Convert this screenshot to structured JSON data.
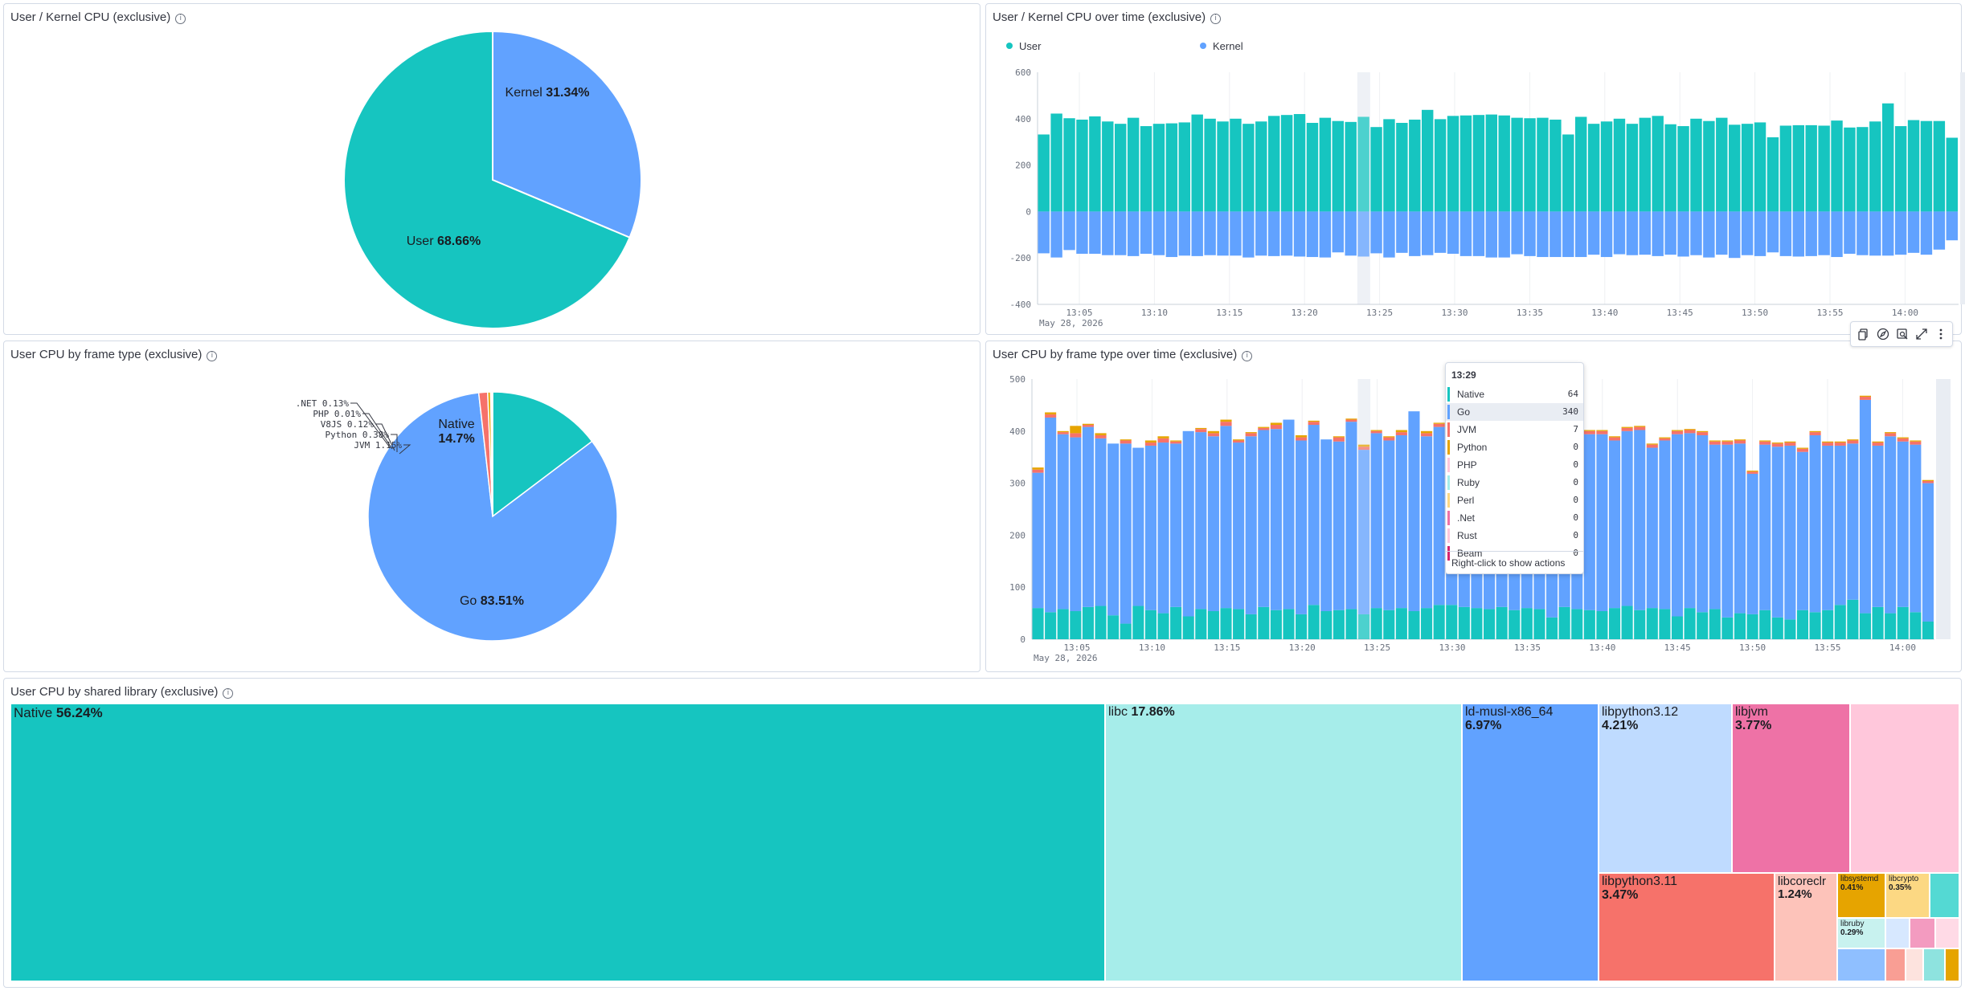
{
  "panels": {
    "pie1": {
      "title": "User / Kernel CPU (exclusive)"
    },
    "bar1": {
      "title": "User / Kernel CPU over time (exclusive)"
    },
    "pie2": {
      "title": "User CPU by frame type (exclusive)"
    },
    "bar2": {
      "title": "User CPU by frame type over time (exclusive)"
    },
    "treemap": {
      "title": "User CPU by shared library (exclusive)"
    }
  },
  "colors": {
    "teal": "#16c5c0",
    "blue": "#61a2ff",
    "orange": "#f6726a",
    "red": "#ee5a3c",
    "lightteal": "#a6edea",
    "paleblue": "#bfdbff",
    "pink": "#ee72a6",
    "palepink": "#ffc7db",
    "salmon": "#f6726a",
    "peach": "#fdc3ba",
    "gold": "#e6a400",
    "paleyellow": "#fcd883"
  },
  "chart_data": [
    {
      "type": "pie",
      "title": "User / Kernel CPU (exclusive)",
      "slices": [
        {
          "label": "Kernel",
          "pct_text": "31.34%",
          "value": 31.34,
          "color": "#61a2ff"
        },
        {
          "label": "User",
          "pct_text": "68.66%",
          "value": 68.66,
          "color": "#16c5c0"
        }
      ]
    },
    {
      "type": "bar",
      "title": "User / Kernel CPU over time (exclusive)",
      "legend": [
        {
          "name": "User",
          "color": "#16c5c0"
        },
        {
          "name": "Kernel",
          "color": "#61a2ff"
        }
      ],
      "ylim": [
        -400,
        600
      ],
      "yticks": [
        -400,
        -200,
        0,
        200,
        400,
        600
      ],
      "xticks": [
        "13:05",
        "13:10",
        "13:15",
        "13:20",
        "13:25",
        "13:30",
        "13:35",
        "13:40",
        "13:45",
        "13:50",
        "13:55",
        "14:00"
      ],
      "date_label": "May 28, 2026",
      "series": [
        {
          "name": "User",
          "values": [
            332,
            422,
            402,
            396,
            410,
            388,
            378,
            404,
            368,
            378,
            380,
            384,
            418,
            400,
            388,
            400,
            378,
            388,
            412,
            416,
            420,
            382,
            404,
            390,
            386,
            408,
            364,
            398,
            382,
            396,
            438,
            398,
            412,
            414,
            416,
            418,
            414,
            404,
            402,
            404,
            396,
            332,
            408,
            378,
            388,
            400,
            378,
            404,
            412,
            376,
            368,
            400,
            390,
            404,
            374,
            378,
            384,
            320,
            370,
            372,
            372,
            370,
            392,
            362,
            364,
            388,
            466,
            368,
            394,
            390,
            390,
            318
          ]
        },
        {
          "name": "Kernel",
          "values": [
            -180,
            -198,
            -166,
            -182,
            -182,
            -188,
            -188,
            -192,
            -182,
            -188,
            -196,
            -190,
            -192,
            -188,
            -190,
            -190,
            -198,
            -190,
            -192,
            -190,
            -194,
            -196,
            -198,
            -176,
            -190,
            -194,
            -180,
            -198,
            -178,
            -192,
            -188,
            -178,
            -182,
            -192,
            -192,
            -198,
            -198,
            -184,
            -192,
            -196,
            -196,
            -196,
            -196,
            -186,
            -196,
            -184,
            -188,
            -186,
            -192,
            -186,
            -194,
            -188,
            -198,
            -186,
            -200,
            -188,
            -192,
            -176,
            -192,
            -194,
            -192,
            -188,
            -196,
            -182,
            -188,
            -190,
            -190,
            -186,
            -178,
            -186,
            -164,
            -124
          ]
        }
      ]
    },
    {
      "type": "pie",
      "title": "User CPU by frame type (exclusive)",
      "slices": [
        {
          "label": "Native",
          "pct_text": "14.7%",
          "value": 14.7,
          "color": "#16c5c0"
        },
        {
          "label": "Go",
          "pct_text": "83.51%",
          "value": 83.51,
          "color": "#61a2ff"
        },
        {
          "label": "JVM",
          "pct_text": "1.15%",
          "value": 1.15,
          "color": "#f6726a"
        },
        {
          "label": "Python",
          "pct_text": "0.38%",
          "value": 0.38,
          "color": "#e6a400"
        },
        {
          "label": "V8JS",
          "pct_text": "0.12%",
          "value": 0.12,
          "color": "#a6edea"
        },
        {
          "label": "PHP",
          "pct_text": "0.01%",
          "value": 0.01,
          "color": "#ee72a6"
        },
        {
          "label": ".NET",
          "pct_text": "0.13%",
          "value": 0.13,
          "color": "#ee72a6"
        }
      ]
    },
    {
      "type": "bar",
      "title": "User CPU by frame type over time (exclusive)",
      "ylim": [
        0,
        500
      ],
      "yticks": [
        0,
        100,
        200,
        300,
        400,
        500
      ],
      "xticks": [
        "13:05",
        "13:10",
        "13:15",
        "13:20",
        "13:25",
        "13:30",
        "13:35",
        "13:40",
        "13:45",
        "13:50",
        "13:55",
        "14:00"
      ],
      "date_label": "May 28, 2026",
      "series": [
        {
          "name": "Native",
          "values": [
            60,
            52,
            58,
            54,
            62,
            64,
            46,
            30,
            64,
            56,
            50,
            62,
            44,
            58,
            54,
            60,
            58,
            48,
            62,
            56,
            58,
            48,
            66,
            54,
            56,
            58,
            48,
            60,
            56,
            60,
            54,
            60,
            66,
            66,
            62,
            60,
            58,
            62,
            56,
            60,
            58,
            42,
            62,
            58,
            56,
            54,
            60,
            64,
            56,
            60,
            58,
            44,
            60,
            52,
            58,
            42,
            50,
            48,
            56,
            42,
            38,
            56,
            52,
            56,
            66,
            76,
            50,
            62,
            50,
            62,
            52,
            34
          ]
        },
        {
          "name": "Go",
          "values": [
            260,
            374,
            336,
            334,
            346,
            322,
            330,
            346,
            304,
            316,
            328,
            314,
            356,
            340,
            336,
            350,
            320,
            342,
            340,
            348,
            364,
            334,
            346,
            330,
            324,
            360,
            316,
            336,
            326,
            332,
            384,
            330,
            342,
            346,
            340,
            346,
            358,
            348,
            346,
            344,
            324,
            302,
            342,
            326,
            338,
            340,
            322,
            336,
            346,
            308,
            324,
            350,
            336,
            340,
            316,
            332,
            326,
            270,
            318,
            328,
            334,
            304,
            340,
            316,
            306,
            300,
            410,
            310,
            340,
            318,
            322,
            266
          ]
        },
        {
          "name": "JVM",
          "values": [
            6,
            6,
            4,
            8,
            4,
            6,
            0,
            6,
            0,
            6,
            8,
            4,
            0,
            6,
            6,
            8,
            4,
            6,
            4,
            8,
            0,
            6,
            6,
            0,
            8,
            4,
            6,
            4,
            6,
            6,
            0,
            6,
            6,
            6,
            6,
            6,
            6,
            6,
            6,
            6,
            6,
            4,
            6,
            6,
            6,
            6,
            6,
            6,
            6,
            6,
            4,
            6,
            6,
            6,
            6,
            6,
            6,
            4,
            6,
            6,
            6,
            6,
            6,
            6,
            6,
            6,
            6,
            6,
            6,
            6,
            6,
            4
          ]
        },
        {
          "name": "Python",
          "values": [
            4,
            4,
            2,
            14,
            2,
            4,
            0,
            2,
            0,
            4,
            4,
            2,
            0,
            2,
            4,
            4,
            2,
            2,
            2,
            4,
            0,
            4,
            2,
            0,
            2,
            2,
            4,
            2,
            2,
            4,
            0,
            4,
            2,
            2,
            2,
            2,
            2,
            2,
            2,
            2,
            2,
            2,
            2,
            2,
            2,
            2,
            2,
            2,
            2,
            2,
            2,
            2,
            2,
            2,
            2,
            2,
            2,
            2,
            2,
            2,
            2,
            2,
            2,
            2,
            2,
            2,
            2,
            2,
            2,
            2,
            2,
            2
          ]
        }
      ],
      "tooltip": {
        "time": "13:29",
        "rows": [
          {
            "name": "Native",
            "value": "64",
            "color": "#16c5c0"
          },
          {
            "name": "Go",
            "value": "340",
            "color": "#61a2ff"
          },
          {
            "name": "JVM",
            "value": "7",
            "color": "#f6726a"
          },
          {
            "name": "Python",
            "value": "0",
            "color": "#e6a400"
          },
          {
            "name": "PHP",
            "value": "0",
            "color": "#ffc7db"
          },
          {
            "name": "Ruby",
            "value": "0",
            "color": "#a6edea"
          },
          {
            "name": "Perl",
            "value": "0",
            "color": "#fcd883"
          },
          {
            "name": ".Net",
            "value": "0",
            "color": "#ee72a6"
          },
          {
            "name": "Rust",
            "value": "0",
            "color": "#ffc7db"
          },
          {
            "name": "Beam",
            "value": "0",
            "color": "#d6246e"
          }
        ],
        "footer": "Right-click to show actions"
      }
    },
    {
      "type": "treemap",
      "title": "User CPU by shared library (exclusive)",
      "items": [
        {
          "name": "Native",
          "pct_text": "56.24%",
          "value": 56.24,
          "color": "#16c5c0"
        },
        {
          "name": "libc",
          "pct_text": "17.86%",
          "value": 17.86,
          "color": "#a6edea"
        },
        {
          "name": "ld-musl-x86_64",
          "pct_text": "6.97%",
          "value": 6.97,
          "color": "#61a2ff"
        },
        {
          "name": "libpython3.12",
          "pct_text": "4.21%",
          "value": 4.21,
          "color": "#bfdbff"
        },
        {
          "name": "libjvm",
          "pct_text": "3.77%",
          "value": 3.77,
          "color": "#ee72a6"
        },
        {
          "name": "libpython3.11",
          "pct_text": "3.47%",
          "value": 3.47,
          "color": "#f6726a"
        },
        {
          "name": "libcoreclr",
          "pct_text": "1.24%",
          "value": 1.24,
          "color": "#fdc3ba"
        },
        {
          "name": "libsystemd",
          "pct_text": "0.41%",
          "value": 0.41,
          "color": "#e6a400"
        },
        {
          "name": "libcrypto",
          "pct_text": "0.35%",
          "value": 0.35,
          "color": "#fcd883"
        },
        {
          "name": "libruby",
          "pct_text": "0.29%",
          "value": 0.29,
          "color": "#c8f2ef"
        }
      ]
    }
  ]
}
